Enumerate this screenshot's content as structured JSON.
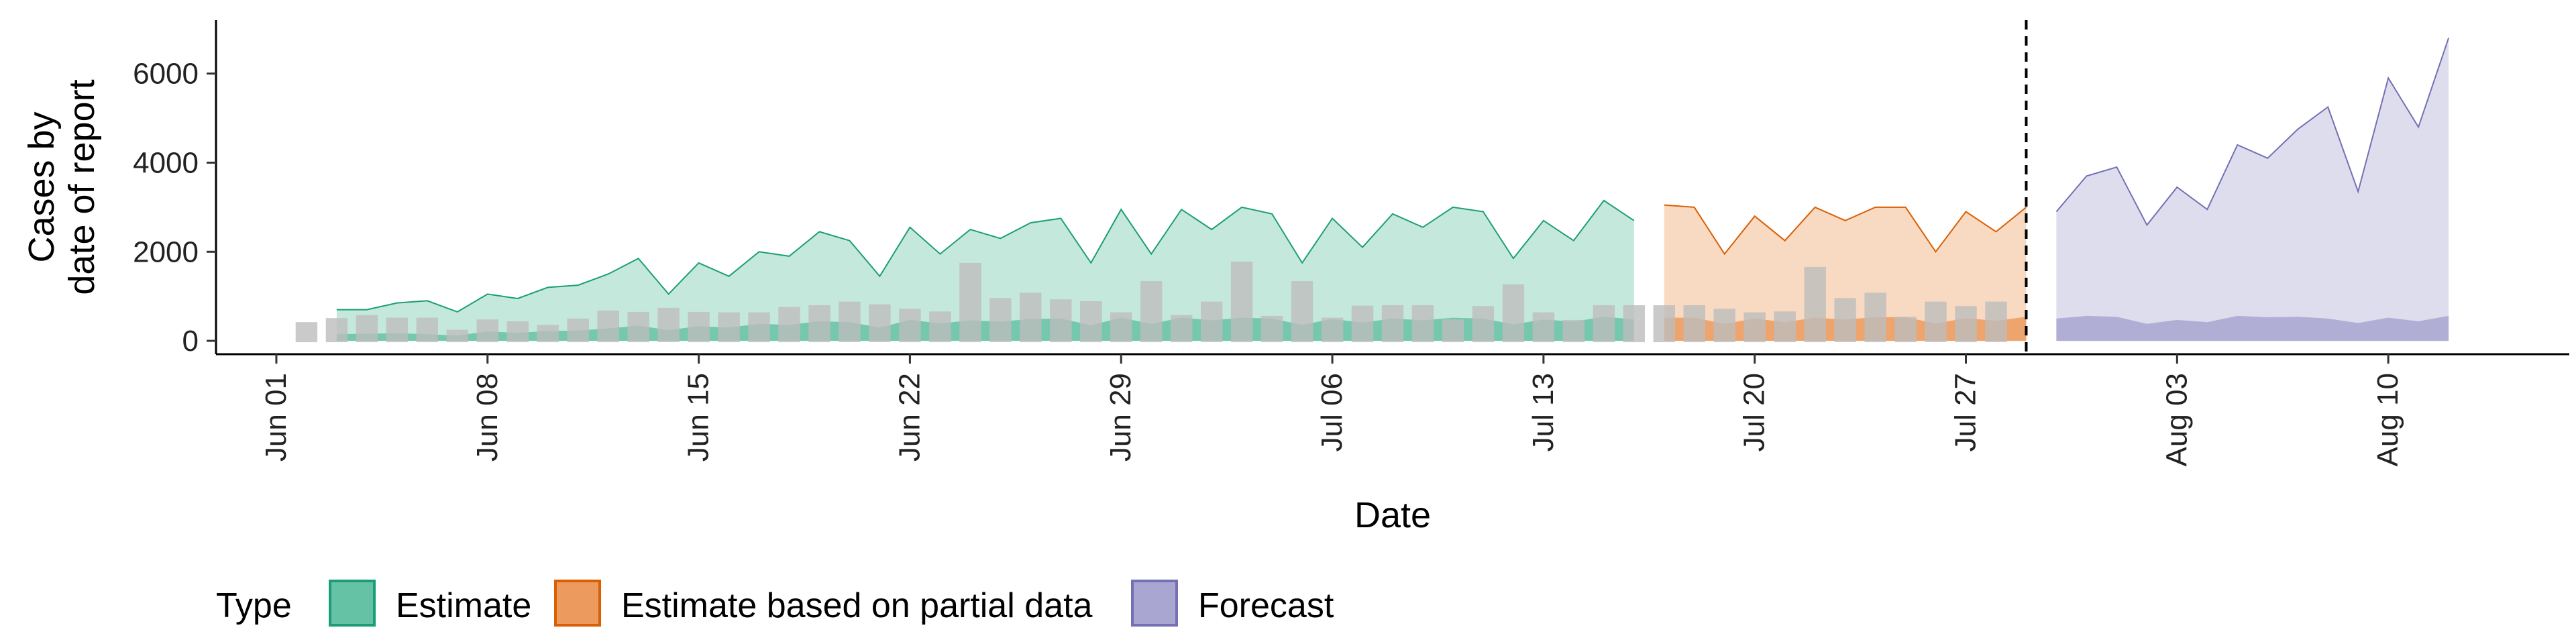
{
  "chart_data": {
    "type": "area",
    "title": "",
    "xlabel": "Date",
    "ylabel": [
      "Cases by",
      "date of report"
    ],
    "x_ticks": [
      "Jun 01",
      "Jun 08",
      "Jun 15",
      "Jun 22",
      "Jun 29",
      "Jul 06",
      "Jul 13",
      "Jul 20",
      "Jul 27",
      "Aug 03",
      "Aug 10"
    ],
    "x_tick_dates": [
      "2020-06-01",
      "2020-06-08",
      "2020-06-15",
      "2020-06-22",
      "2020-06-29",
      "2020-07-06",
      "2020-07-13",
      "2020-07-20",
      "2020-07-27",
      "2020-08-03",
      "2020-08-10"
    ],
    "xlim": [
      "2020-05-30",
      "2020-08-16"
    ],
    "y_ticks": [
      0,
      2000,
      4000,
      6000
    ],
    "ylim": [
      -300,
      7200
    ],
    "grid": false,
    "vline_date": "2020-07-29",
    "legend": {
      "title": "Type",
      "position": "bottom",
      "items": [
        {
          "label": "Estimate",
          "fill": "#66c2a5",
          "stroke": "#1b9e77"
        },
        {
          "label": "Estimate based on partial data",
          "fill": "#ec9a5e",
          "stroke": "#d95f02"
        },
        {
          "label": "Forecast",
          "fill": "#a9a6d1",
          "stroke": "#7570b3"
        }
      ]
    },
    "series": [
      {
        "name": "Estimate",
        "fill": "#66c2a5",
        "stroke": "#1b9e77",
        "start": "2020-06-03",
        "upper": [
          700,
          700,
          850,
          900,
          650,
          1050,
          950,
          1200,
          1250,
          1500,
          1850,
          1050,
          1750,
          1450,
          2000,
          1900,
          2450,
          2250,
          1450,
          2550,
          1950,
          2500,
          2300,
          2650,
          2750,
          1750,
          2950,
          1950,
          2950,
          2500,
          3000,
          2850,
          1750,
          2750,
          2100,
          2850,
          2550,
          3000,
          2900,
          1850,
          2700,
          2250,
          3150,
          2700
        ],
        "lower": [
          150,
          160,
          170,
          150,
          120,
          210,
          180,
          220,
          230,
          280,
          340,
          240,
          330,
          300,
          380,
          360,
          440,
          420,
          300,
          470,
          390,
          460,
          430,
          490,
          500,
          350,
          520,
          380,
          520,
          460,
          520,
          500,
          360,
          490,
          410,
          500,
          460,
          520,
          500,
          370,
          480,
          430,
          540,
          480
        ]
      },
      {
        "name": "Estimate based on partial data",
        "fill": "#ec9a5e",
        "stroke": "#d95f02",
        "start": "2020-07-17",
        "upper": [
          3050,
          3000,
          1950,
          2800,
          2250,
          3000,
          2700,
          3000,
          3000,
          2000,
          2900,
          2450,
          3000
        ],
        "lower": [
          520,
          520,
          380,
          500,
          420,
          520,
          480,
          530,
          530,
          390,
          510,
          450,
          540
        ]
      },
      {
        "name": "Forecast",
        "fill": "#a9a6d1",
        "stroke": "#7570b3",
        "start": "2020-07-30",
        "upper": [
          2900,
          3700,
          3900,
          2600,
          3450,
          2950,
          4400,
          4100,
          4750,
          5250,
          3350,
          5900,
          4800,
          6800
        ],
        "lower": [
          500,
          560,
          540,
          380,
          470,
          420,
          560,
          530,
          540,
          500,
          400,
          520,
          440,
          560
        ]
      }
    ],
    "reported_bars": {
      "color": "#bdbdbd",
      "start": "2020-06-02",
      "values": [
        420,
        510,
        580,
        520,
        520,
        250,
        480,
        440,
        360,
        500,
        680,
        650,
        740,
        650,
        640,
        640,
        760,
        800,
        880,
        820,
        720,
        660,
        1750,
        960,
        1080,
        930,
        890,
        640,
        1340,
        580,
        880,
        1780,
        560,
        1340,
        520,
        790,
        800,
        800,
        480,
        780,
        1270,
        640,
        470,
        800,
        800,
        800,
        800,
        720,
        640,
        660,
        1660,
        960,
        1080,
        540,
        880,
        780,
        880
      ]
    }
  }
}
